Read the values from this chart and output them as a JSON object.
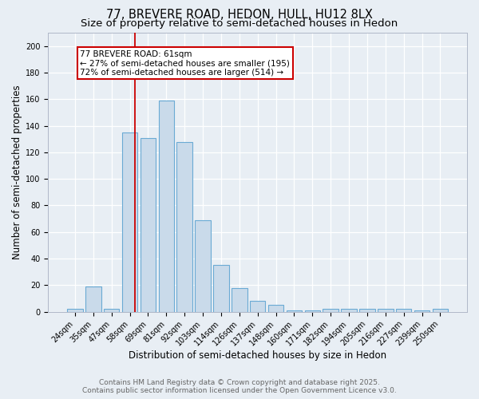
{
  "title_line1": "77, BREVERE ROAD, HEDON, HULL, HU12 8LX",
  "title_line2": "Size of property relative to semi-detached houses in Hedon",
  "xlabel": "Distribution of semi-detached houses by size in Hedon",
  "ylabel": "Number of semi-detached properties",
  "categories": [
    "24sqm",
    "35sqm",
    "47sqm",
    "58sqm",
    "69sqm",
    "81sqm",
    "92sqm",
    "103sqm",
    "114sqm",
    "126sqm",
    "137sqm",
    "148sqm",
    "160sqm",
    "171sqm",
    "182sqm",
    "194sqm",
    "205sqm",
    "216sqm",
    "227sqm",
    "239sqm",
    "250sqm"
  ],
  "values": [
    2,
    19,
    2,
    135,
    131,
    159,
    128,
    69,
    35,
    18,
    8,
    5,
    1,
    1,
    2,
    2,
    2,
    2,
    2,
    1,
    2
  ],
  "bar_color": "#c9daea",
  "bar_edge_color": "#6aaad4",
  "red_line_x": 3.27,
  "annotation_text_line1": "77 BREVERE ROAD: 61sqm",
  "annotation_text_line2": "← 27% of semi-detached houses are smaller (195)",
  "annotation_text_line3": "72% of semi-detached houses are larger (514) →",
  "annotation_box_facecolor": "#ffffff",
  "annotation_box_edgecolor": "#cc0000",
  "red_line_color": "#cc0000",
  "ylim": [
    0,
    210
  ],
  "yticks": [
    0,
    20,
    40,
    60,
    80,
    100,
    120,
    140,
    160,
    180,
    200
  ],
  "footer_line1": "Contains HM Land Registry data © Crown copyright and database right 2025.",
  "footer_line2": "Contains public sector information licensed under the Open Government Licence v3.0.",
  "background_color": "#e8eef4",
  "plot_background": "#e8eef4",
  "grid_color": "#ffffff",
  "title_fontsize": 10.5,
  "subtitle_fontsize": 9.5,
  "axis_label_fontsize": 8.5,
  "tick_fontsize": 7,
  "footer_fontsize": 6.5,
  "annotation_fontsize": 7.5
}
